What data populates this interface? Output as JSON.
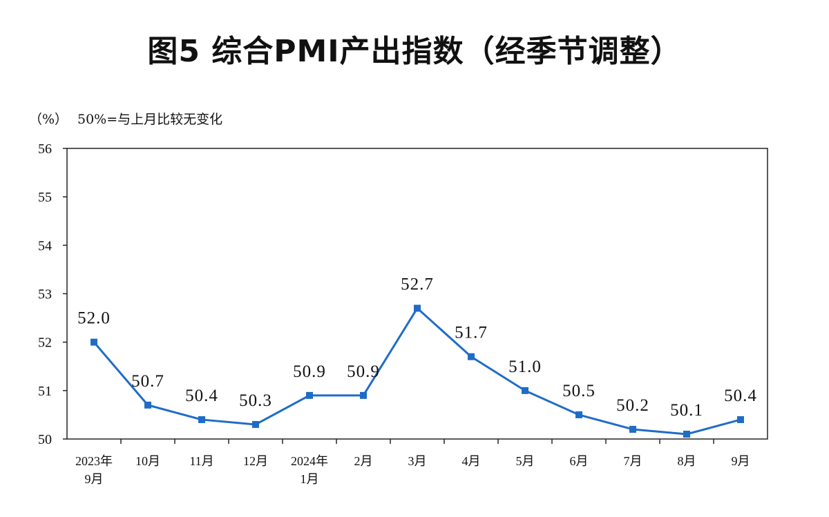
{
  "chart_data": {
    "type": "line",
    "title": "图5  综合PMI产出指数（经季节调整）",
    "unit": "（%）",
    "note": "50%=与上月比较无变化",
    "ylim": [
      50,
      56
    ],
    "yticks": [
      50,
      51,
      52,
      53,
      54,
      55,
      56
    ],
    "categories": [
      [
        "2023年",
        "9月"
      ],
      [
        "10月"
      ],
      [
        "11月"
      ],
      [
        "12月"
      ],
      [
        "2024年",
        "1月"
      ],
      [
        "2月"
      ],
      [
        "3月"
      ],
      [
        "4月"
      ],
      [
        "5月"
      ],
      [
        "6月"
      ],
      [
        "7月"
      ],
      [
        "8月"
      ],
      [
        "9月"
      ]
    ],
    "series": [
      {
        "values": [
          52.0,
          50.7,
          50.4,
          50.3,
          50.9,
          50.9,
          52.7,
          51.7,
          51.0,
          50.5,
          50.2,
          50.1,
          50.4
        ],
        "labels": [
          "52.0",
          "50.7",
          "50.4",
          "50.3",
          "50.9",
          "50.9",
          "52.7",
          "51.7",
          "51.0",
          "50.5",
          "50.2",
          "50.1",
          "50.4"
        ],
        "color": "#1f6cc7"
      }
    ],
    "grid": false,
    "legend": "none"
  }
}
